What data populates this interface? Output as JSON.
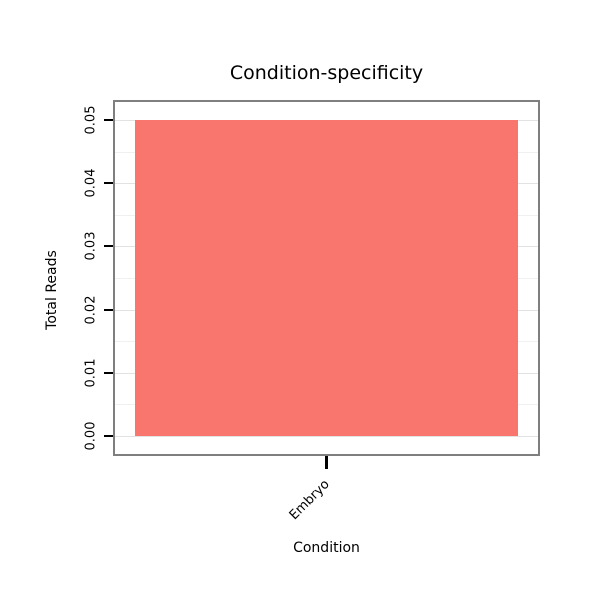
{
  "chart_data": {
    "type": "bar",
    "title": "Condition-specificity",
    "xlabel": "Condition",
    "ylabel": "Total Reads",
    "categories": [
      "Embryo"
    ],
    "values": [
      0.05
    ],
    "ylim": [
      0,
      0.05
    ],
    "yticks": [
      "0.00",
      "0.01",
      "0.02",
      "0.03",
      "0.04",
      "0.05"
    ],
    "bar_color": "#F8766D",
    "panel_border_color": "#7f7f7f",
    "grid": true,
    "legend": "none"
  }
}
